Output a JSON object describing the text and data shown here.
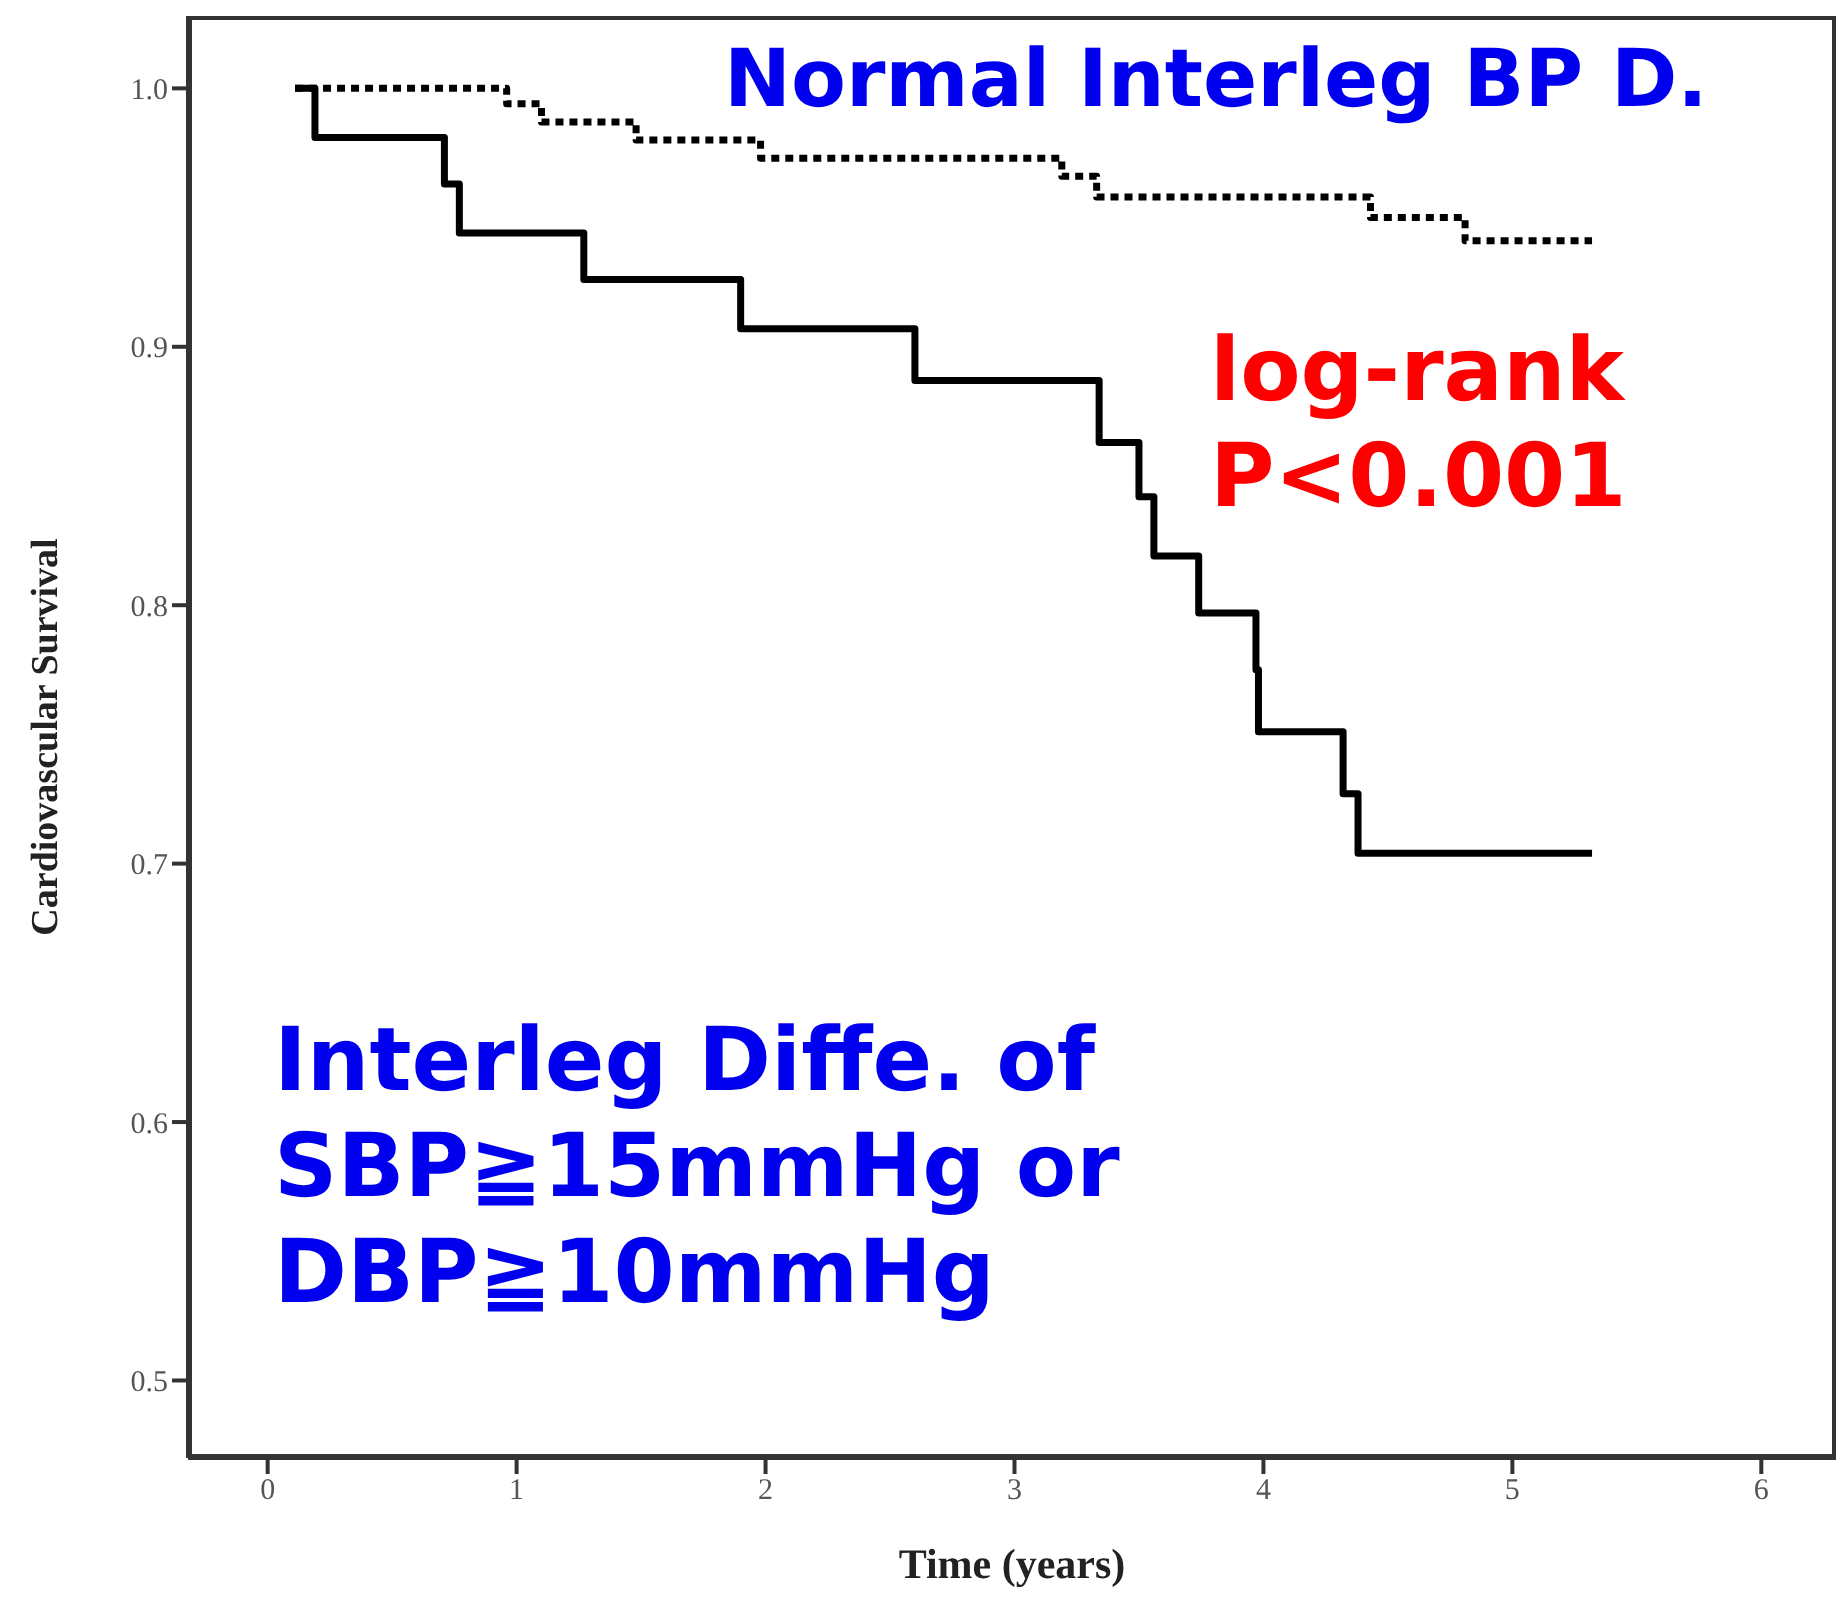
{
  "chart_data": {
    "type": "step",
    "xlabel": "Time (years)",
    "ylabel": "Cardiovascular Survival",
    "xlim": [
      -0.32,
      6.3
    ],
    "xticks": [
      0,
      1,
      2,
      3,
      4,
      5,
      6
    ],
    "ylim": [
      0.47,
      1.028
    ],
    "yticks": [
      0.5,
      0.6,
      0.7,
      0.8,
      0.9,
      {
        "value": 1,
        "label": "1.0"
      }
    ],
    "marker": "none",
    "series": [
      {
        "color": "#000000",
        "line_style": "dotted",
        "x": [
          0.11,
          0.96,
          1.1,
          1.48,
          1.98,
          3.19,
          3.33,
          4.43,
          4.81,
          5.32
        ],
        "values": [
          1.0,
          0.994,
          0.987,
          0.98,
          0.973,
          0.966,
          0.958,
          0.95,
          0.941,
          0.941
        ]
      },
      {
        "color": "#000000",
        "line_style": "solid",
        "x": [
          0.11,
          0.19,
          0.71,
          0.77,
          1.27,
          1.9,
          2.6,
          3.34,
          3.5,
          3.56,
          3.74,
          3.97,
          3.98,
          4.32,
          4.38,
          5.32
        ],
        "values": [
          1.0,
          0.981,
          0.963,
          0.944,
          0.926,
          0.907,
          0.887,
          0.863,
          0.842,
          0.819,
          0.797,
          0.775,
          0.751,
          0.727,
          0.704,
          0.704
        ]
      }
    ],
    "annotations": [
      "Normal Interleg BP D.",
      "log-rank\nP<0.001",
      "Interleg Diffe. of\nSBP≧15mmHg or\nDBP≧10mmHg"
    ]
  }
}
